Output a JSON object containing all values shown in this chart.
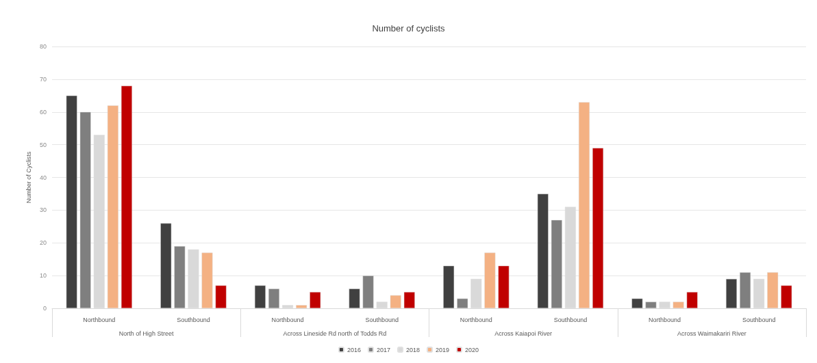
{
  "chart_data": {
    "type": "bar",
    "title": "Number of cyclists",
    "ylabel": "Number of Cyclists",
    "categories": [
      "Northbound",
      "Southbound",
      "Northbound",
      "Southbound",
      "Northbound",
      "Southbound",
      "Northbound",
      "Southbound"
    ],
    "annotations": [
      "North of High Street",
      "Across Lineside Rd north of Todds Rd",
      "Across Kaiapoi River",
      "Across Waimakariri River"
    ],
    "series": [
      {
        "name": "2016",
        "color": "#404040",
        "values": [
          65,
          26,
          7,
          6,
          13,
          35,
          3,
          9
        ]
      },
      {
        "name": "2017",
        "color": "#7f7f7f",
        "values": [
          60,
          19,
          6,
          10,
          3,
          27,
          2,
          11
        ]
      },
      {
        "name": "2018",
        "color": "#d9d9d9",
        "values": [
          53,
          18,
          1,
          2,
          9,
          31,
          2,
          9
        ]
      },
      {
        "name": "2019",
        "color": "#f4b183",
        "values": [
          62,
          17,
          1,
          4,
          17,
          63,
          2,
          11
        ]
      },
      {
        "name": "2020",
        "color": "#c00000",
        "values": [
          68,
          7,
          5,
          5,
          13,
          49,
          5,
          7
        ]
      }
    ],
    "ylim": [
      0,
      80
    ],
    "yticks": [
      0,
      10,
      20,
      30,
      40,
      50,
      60,
      70,
      80
    ],
    "grid": "y",
    "legend": "bottom"
  }
}
